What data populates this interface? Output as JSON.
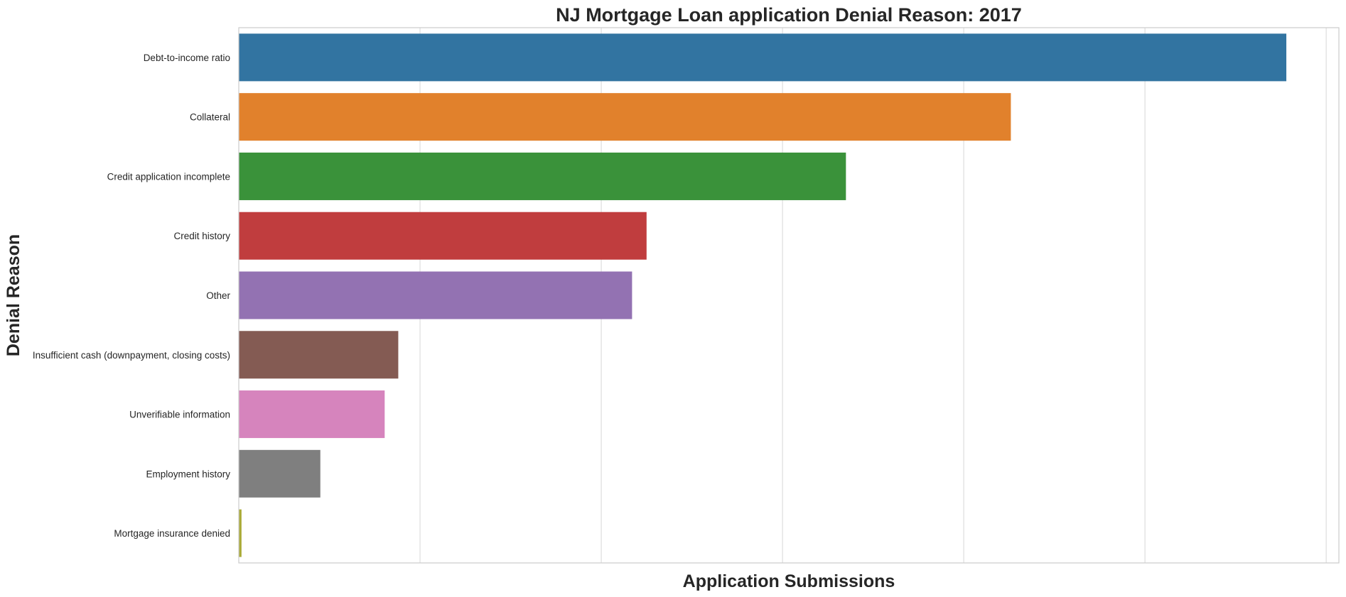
{
  "chart_data": {
    "type": "bar",
    "orientation": "horizontal",
    "title": "NJ Mortgage Loan application Denial Reason: 2017",
    "xlabel": "Application Submissions",
    "ylabel": "Denial Reason",
    "categories": [
      "Debt-to-income ratio",
      "Collateral",
      "Credit application incomplete",
      "Credit history",
      "Other",
      "Insufficient cash (downpayment, closing costs)",
      "Unverifiable information",
      "Employment history",
      "Mortgage insurance denied"
    ],
    "values": [
      5780,
      4260,
      3350,
      2250,
      2170,
      880,
      805,
      450,
      15
    ],
    "colors": [
      "#3274a1",
      "#e1812c",
      "#3a923a",
      "#c03d3e",
      "#9372b2",
      "#845b53",
      "#d684bd",
      "#7f7f7f",
      "#a9aa35"
    ],
    "xlim": [
      0,
      6070
    ],
    "x_gridlines": [
      1000,
      2000,
      3000,
      4000,
      5000,
      6000
    ],
    "x_tick_labels_visible": false,
    "grid": true
  }
}
